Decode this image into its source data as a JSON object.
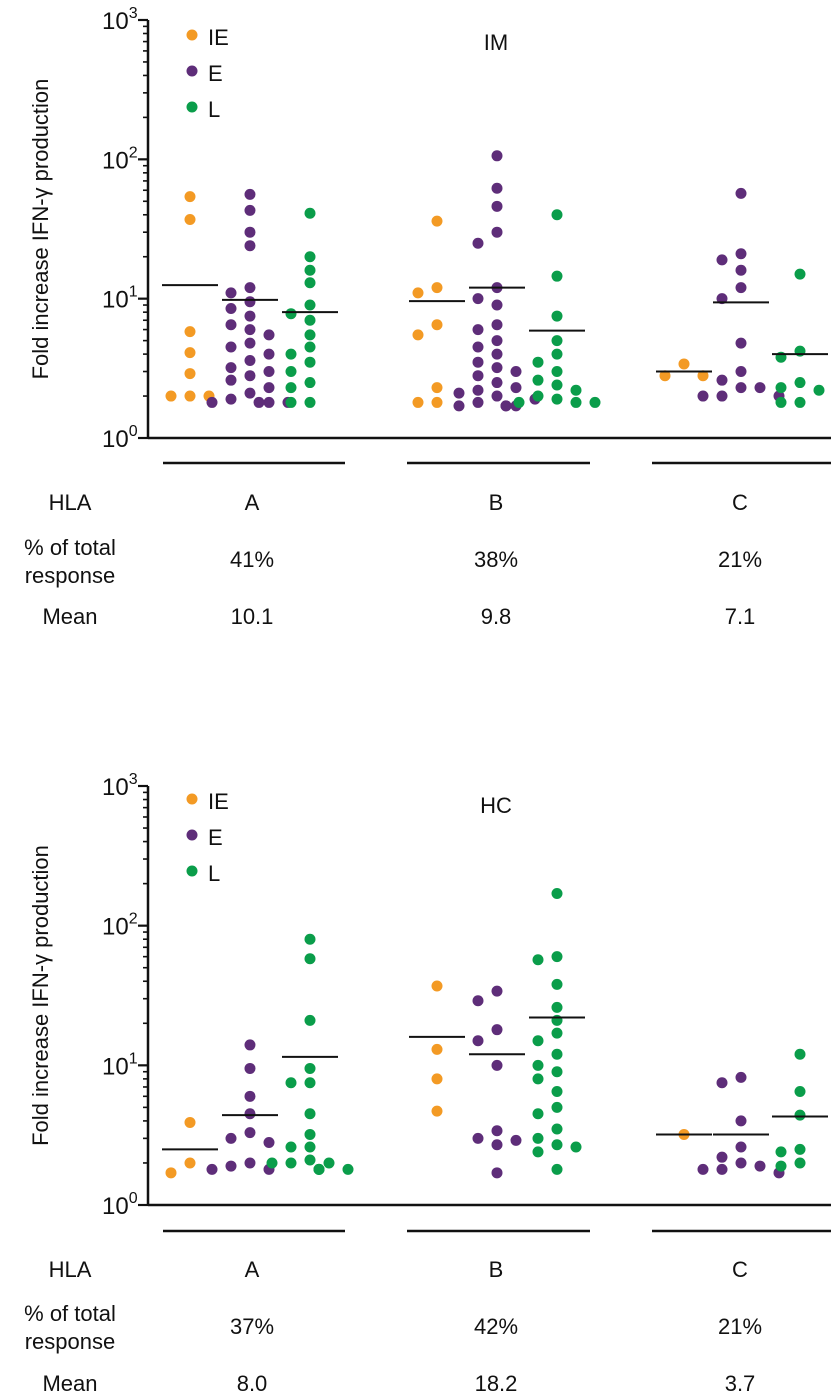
{
  "colors": {
    "IE": "#F39A24",
    "E": "#5E2D79",
    "L": "#0A9D4A",
    "axis": "#111111"
  },
  "row_labels": {
    "hla": "HLA",
    "pct_line1": "% of total",
    "pct_line2": "response",
    "mean": "Mean"
  },
  "chart_data": [
    {
      "type": "scatter",
      "title": "IM",
      "ylabel": "Fold increase IFN-γ production",
      "yscale": "log",
      "ylim": [
        1,
        1000
      ],
      "yticks": [
        {
          "exp": "0",
          "value": 1
        },
        {
          "exp": "1",
          "value": 10
        },
        {
          "exp": "2",
          "value": 100
        },
        {
          "exp": "3",
          "value": 1000
        }
      ],
      "legend": [
        {
          "key": "IE",
          "label": "IE"
        },
        {
          "key": "E",
          "label": "E"
        },
        {
          "key": "L",
          "label": "L"
        }
      ],
      "legend_position": "top-left",
      "groups": [
        {
          "hla": "A",
          "pct": "41%",
          "mean": "10.1",
          "series": [
            {
              "key": "IE",
              "mean_line": 12.5,
              "values": [
                54,
                37,
                5.8,
                4.1,
                2.9,
                2.0,
                2.0,
                2.0
              ]
            },
            {
              "key": "E",
              "mean_line": 9.8,
              "values": [
                56,
                43,
                30,
                24,
                12,
                11,
                9.5,
                8.5,
                7.5,
                6.5,
                6.0,
                5.5,
                4.8,
                4.5,
                4.0,
                3.6,
                3.2,
                3.0,
                2.8,
                2.6,
                2.3,
                2.1,
                1.9,
                1.8,
                1.8,
                1.8,
                1.8
              ]
            },
            {
              "key": "L",
              "mean_line": 8.0,
              "values": [
                41,
                20,
                16,
                13,
                9.0,
                7.8,
                7.0,
                5.5,
                4.5,
                4.0,
                3.5,
                3.0,
                2.5,
                2.3,
                1.8,
                1.8
              ]
            }
          ]
        },
        {
          "hla": "B",
          "pct": "38%",
          "mean": "9.8",
          "series": [
            {
              "key": "IE",
              "mean_line": 9.6,
              "values": [
                36,
                12,
                11,
                6.5,
                5.5,
                2.3,
                1.8,
                1.8
              ]
            },
            {
              "key": "E",
              "mean_line": 12.0,
              "values": [
                106,
                62,
                46,
                30,
                25,
                12,
                10,
                9.0,
                6.5,
                6.0,
                5.0,
                4.5,
                4.0,
                3.5,
                3.2,
                3.0,
                2.8,
                2.5,
                2.3,
                2.2,
                2.1,
                2.0,
                1.9,
                1.8,
                1.7,
                1.7,
                1.7,
                1.7
              ]
            },
            {
              "key": "L",
              "mean_line": 5.9,
              "values": [
                40,
                14.5,
                7.5,
                5.0,
                4.0,
                3.5,
                3.0,
                2.6,
                2.4,
                2.2,
                2.0,
                1.9,
                1.8,
                1.8,
                1.8
              ]
            }
          ]
        },
        {
          "hla": "C",
          "pct": "21%",
          "mean": "7.1",
          "series": [
            {
              "key": "IE",
              "mean_line": 3.0,
              "values": [
                3.4,
                2.8,
                2.8
              ]
            },
            {
              "key": "E",
              "mean_line": 9.4,
              "values": [
                57,
                21,
                19,
                16,
                12,
                10,
                4.8,
                3.0,
                2.6,
                2.3,
                2.3,
                2.0,
                2.0,
                2.0
              ]
            },
            {
              "key": "L",
              "mean_line": 4.0,
              "values": [
                15,
                4.2,
                3.8,
                2.5,
                2.3,
                2.2,
                1.8,
                1.8
              ]
            }
          ]
        }
      ]
    },
    {
      "type": "scatter",
      "title": "HC",
      "ylabel": "Fold increase IFN-γ production",
      "yscale": "log",
      "ylim": [
        1,
        1000
      ],
      "yticks": [
        {
          "exp": "0",
          "value": 1
        },
        {
          "exp": "1",
          "value": 10
        },
        {
          "exp": "2",
          "value": 100
        },
        {
          "exp": "3",
          "value": 1000
        }
      ],
      "legend": [
        {
          "key": "IE",
          "label": "IE"
        },
        {
          "key": "E",
          "label": "E"
        },
        {
          "key": "L",
          "label": "L"
        }
      ],
      "legend_position": "top-left",
      "groups": [
        {
          "hla": "A",
          "pct": "37%",
          "mean": "8.0",
          "series": [
            {
              "key": "IE",
              "mean_line": 2.5,
              "values": [
                3.9,
                2.0,
                1.7
              ]
            },
            {
              "key": "E",
              "mean_line": 4.4,
              "values": [
                14,
                9.5,
                6.0,
                4.5,
                3.3,
                3.0,
                2.8,
                2.0,
                1.9,
                1.8,
                1.8
              ]
            },
            {
              "key": "L",
              "mean_line": 11.5,
              "values": [
                80,
                58,
                21,
                9.5,
                7.5,
                7.5,
                4.5,
                3.2,
                2.6,
                2.6,
                2.1,
                2.0,
                2.0,
                2.0,
                1.8,
                1.8,
                1.8,
                1.8
              ]
            }
          ]
        },
        {
          "hla": "B",
          "pct": "42%",
          "mean": "18.2",
          "series": [
            {
              "key": "IE",
              "mean_line": 16.0,
              "values": [
                37,
                13,
                8.0,
                4.7
              ]
            },
            {
              "key": "E",
              "mean_line": 12.0,
              "values": [
                34,
                29,
                18,
                15,
                10,
                3.4,
                3.0,
                2.9,
                2.7,
                1.7
              ]
            },
            {
              "key": "L",
              "mean_line": 22.0,
              "values": [
                170,
                60,
                57,
                38,
                26,
                21,
                17,
                15,
                12,
                10,
                9.0,
                8.0,
                6.5,
                5.0,
                4.5,
                3.5,
                3.0,
                2.7,
                2.6,
                2.4,
                1.8
              ]
            }
          ]
        },
        {
          "hla": "C",
          "pct": "21%",
          "mean": "3.7",
          "series": [
            {
              "key": "IE",
              "mean_line": 3.2,
              "values": [
                3.2
              ]
            },
            {
              "key": "E",
              "mean_line": 3.2,
              "values": [
                8.2,
                7.5,
                4.0,
                2.6,
                2.2,
                2.0,
                1.9,
                1.8,
                1.8,
                1.7
              ]
            },
            {
              "key": "L",
              "mean_line": 4.3,
              "values": [
                12,
                6.5,
                4.4,
                2.5,
                2.4,
                2.0,
                1.9
              ]
            }
          ]
        }
      ]
    }
  ]
}
